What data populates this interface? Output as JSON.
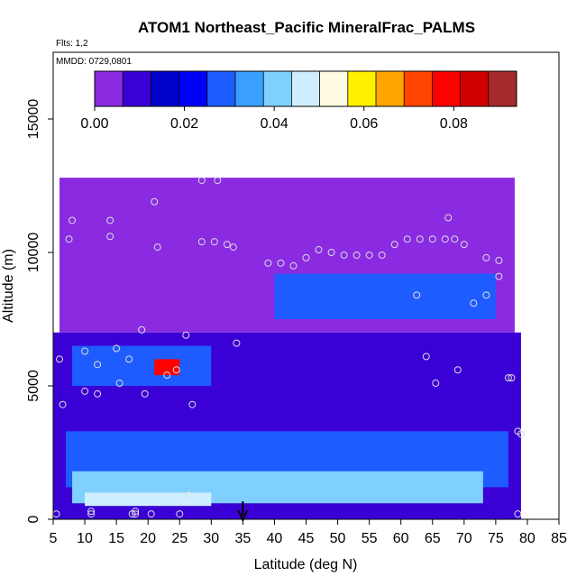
{
  "chart_data": {
    "type": "heatmap",
    "title": "ATOM1 Northeast_Pacific MineralFrac_PALMS",
    "subtitle_flts": "Flts: 1,2",
    "subtitle_mmdd": "MMDD: 0729,0801",
    "xlabel": "Latitude (deg N)",
    "ylabel": "Altitude (m)",
    "xlim": [
      5,
      85
    ],
    "ylim": [
      0,
      17500
    ],
    "x_ticks": [
      "5",
      "10",
      "15",
      "20",
      "25",
      "30",
      "35",
      "40",
      "45",
      "50",
      "55",
      "60",
      "65",
      "70",
      "75",
      "80",
      "85"
    ],
    "y_ticks": [
      "0",
      "5000",
      "10000",
      "15000"
    ],
    "colorbar": {
      "ticks": [
        "0.00",
        "0.02",
        "0.04",
        "0.06",
        "0.08"
      ],
      "range": [
        0,
        0.094
      ],
      "colors": [
        "#8a2be2",
        "#3a00d6",
        "#0000cd",
        "#0000ff",
        "#1e5cff",
        "#3aa0ff",
        "#7fd0ff",
        "#cfeeff",
        "#fffbe0",
        "#fff000",
        "#ffa500",
        "#ff4500",
        "#ff0000",
        "#d00000",
        "#a52a2a"
      ]
    },
    "arrow_latitude": 35,
    "regions": [
      {
        "lat0": 6,
        "lat1": 78,
        "alt0": 10000,
        "alt1": 12800,
        "value": 0.003
      },
      {
        "lat0": 6,
        "lat1": 78,
        "alt0": 7000,
        "alt1": 10000,
        "value": 0.006
      },
      {
        "lat0": 40,
        "lat1": 75,
        "alt0": 7500,
        "alt1": 9200,
        "value": 0.028
      },
      {
        "lat0": 5,
        "lat1": 79,
        "alt0": 0,
        "alt1": 7000,
        "value": 0.012
      },
      {
        "lat0": 7,
        "lat1": 77,
        "alt0": 1200,
        "alt1": 3300,
        "value": 0.028
      },
      {
        "lat0": 8,
        "lat1": 73,
        "alt0": 600,
        "alt1": 1800,
        "value": 0.038
      },
      {
        "lat0": 10,
        "lat1": 30,
        "alt0": 500,
        "alt1": 1000,
        "value": 0.048
      },
      {
        "lat0": 8,
        "lat1": 30,
        "alt0": 5000,
        "alt1": 6500,
        "value": 0.03
      },
      {
        "lat0": 21,
        "lat1": 25,
        "alt0": 5400,
        "alt1": 6000,
        "value": 0.08
      }
    ],
    "points": [
      {
        "lat": 5.5,
        "alt": 200
      },
      {
        "lat": 6,
        "alt": 6000
      },
      {
        "lat": 6.5,
        "alt": 4300
      },
      {
        "lat": 7.5,
        "alt": 10500
      },
      {
        "lat": 8,
        "alt": 11200
      },
      {
        "lat": 10,
        "alt": 6300
      },
      {
        "lat": 10,
        "alt": 4800
      },
      {
        "lat": 11,
        "alt": 200
      },
      {
        "lat": 11,
        "alt": 300
      },
      {
        "lat": 12,
        "alt": 5800
      },
      {
        "lat": 12,
        "alt": 4700
      },
      {
        "lat": 14,
        "alt": 11200
      },
      {
        "lat": 14,
        "alt": 10600
      },
      {
        "lat": 15,
        "alt": 6400
      },
      {
        "lat": 15.5,
        "alt": 5100
      },
      {
        "lat": 17,
        "alt": 6000
      },
      {
        "lat": 17.5,
        "alt": 200
      },
      {
        "lat": 18,
        "alt": 300
      },
      {
        "lat": 18,
        "alt": 200
      },
      {
        "lat": 19,
        "alt": 7100
      },
      {
        "lat": 19.5,
        "alt": 4700
      },
      {
        "lat": 20.5,
        "alt": 200
      },
      {
        "lat": 21,
        "alt": 11900
      },
      {
        "lat": 21.5,
        "alt": 10200
      },
      {
        "lat": 23,
        "alt": 5400
      },
      {
        "lat": 24.5,
        "alt": 5600
      },
      {
        "lat": 25,
        "alt": 200
      },
      {
        "lat": 26,
        "alt": 6900
      },
      {
        "lat": 26.5,
        "alt": 900
      },
      {
        "lat": 27,
        "alt": 4300
      },
      {
        "lat": 28.5,
        "alt": 12700
      },
      {
        "lat": 28.5,
        "alt": 10400
      },
      {
        "lat": 30.5,
        "alt": 10400
      },
      {
        "lat": 31,
        "alt": 12700
      },
      {
        "lat": 32.5,
        "alt": 10300
      },
      {
        "lat": 33.5,
        "alt": 10200
      },
      {
        "lat": 34,
        "alt": 6600
      },
      {
        "lat": 39,
        "alt": 9600
      },
      {
        "lat": 41,
        "alt": 9600
      },
      {
        "lat": 43,
        "alt": 9500
      },
      {
        "lat": 45,
        "alt": 9800
      },
      {
        "lat": 47,
        "alt": 10100
      },
      {
        "lat": 49,
        "alt": 10000
      },
      {
        "lat": 51,
        "alt": 9900
      },
      {
        "lat": 53,
        "alt": 9900
      },
      {
        "lat": 55,
        "alt": 9900
      },
      {
        "lat": 57,
        "alt": 9900
      },
      {
        "lat": 59,
        "alt": 10300
      },
      {
        "lat": 61,
        "alt": 10500
      },
      {
        "lat": 62.5,
        "alt": 8400
      },
      {
        "lat": 63,
        "alt": 10500
      },
      {
        "lat": 64,
        "alt": 6100
      },
      {
        "lat": 65,
        "alt": 10500
      },
      {
        "lat": 65.5,
        "alt": 5100
      },
      {
        "lat": 67,
        "alt": 10500
      },
      {
        "lat": 67.5,
        "alt": 11300
      },
      {
        "lat": 68.5,
        "alt": 10500
      },
      {
        "lat": 69,
        "alt": 5600
      },
      {
        "lat": 70,
        "alt": 10300
      },
      {
        "lat": 71.5,
        "alt": 8100
      },
      {
        "lat": 73.5,
        "alt": 8400
      },
      {
        "lat": 73.5,
        "alt": 9800
      },
      {
        "lat": 75.5,
        "alt": 9700
      },
      {
        "lat": 75.5,
        "alt": 9100
      },
      {
        "lat": 77,
        "alt": 5300
      },
      {
        "lat": 77.5,
        "alt": 5300
      },
      {
        "lat": 78.5,
        "alt": 3300
      },
      {
        "lat": 79,
        "alt": 3200
      },
      {
        "lat": 78.5,
        "alt": 200
      }
    ]
  }
}
